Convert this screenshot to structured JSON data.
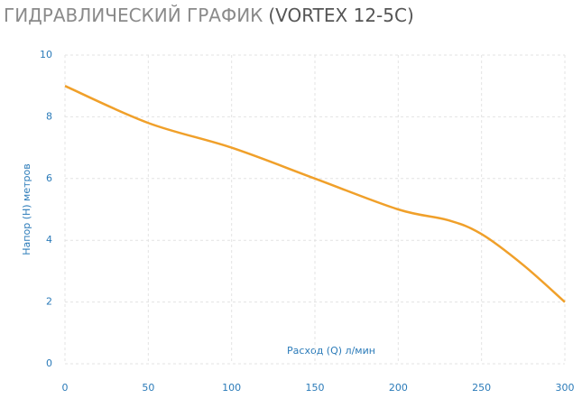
{
  "chart_data": {
    "type": "line",
    "title": "ГИДРАВЛИЧЕСКИЙ ГРАФИК",
    "subtitle": "(VORTEX 12-5C)",
    "x_label": "Расход (Q) л/мин",
    "y_label": "Напор (H) метров",
    "x": [
      0,
      50,
      100,
      150,
      200,
      230,
      250,
      275,
      300
    ],
    "series": [
      {
        "name": "VORTEX 12-5C",
        "color": "#f0a02a",
        "values": [
          9,
          7.8,
          7,
          6,
          5,
          4.65,
          4.2,
          3.2,
          2
        ]
      }
    ],
    "xlim": [
      0,
      300
    ],
    "xticks": [
      0,
      50,
      100,
      150,
      200,
      250,
      300
    ],
    "ylim": [
      0,
      10
    ],
    "yticks": [
      0,
      2,
      4,
      6,
      8,
      10
    ],
    "grid": true
  }
}
